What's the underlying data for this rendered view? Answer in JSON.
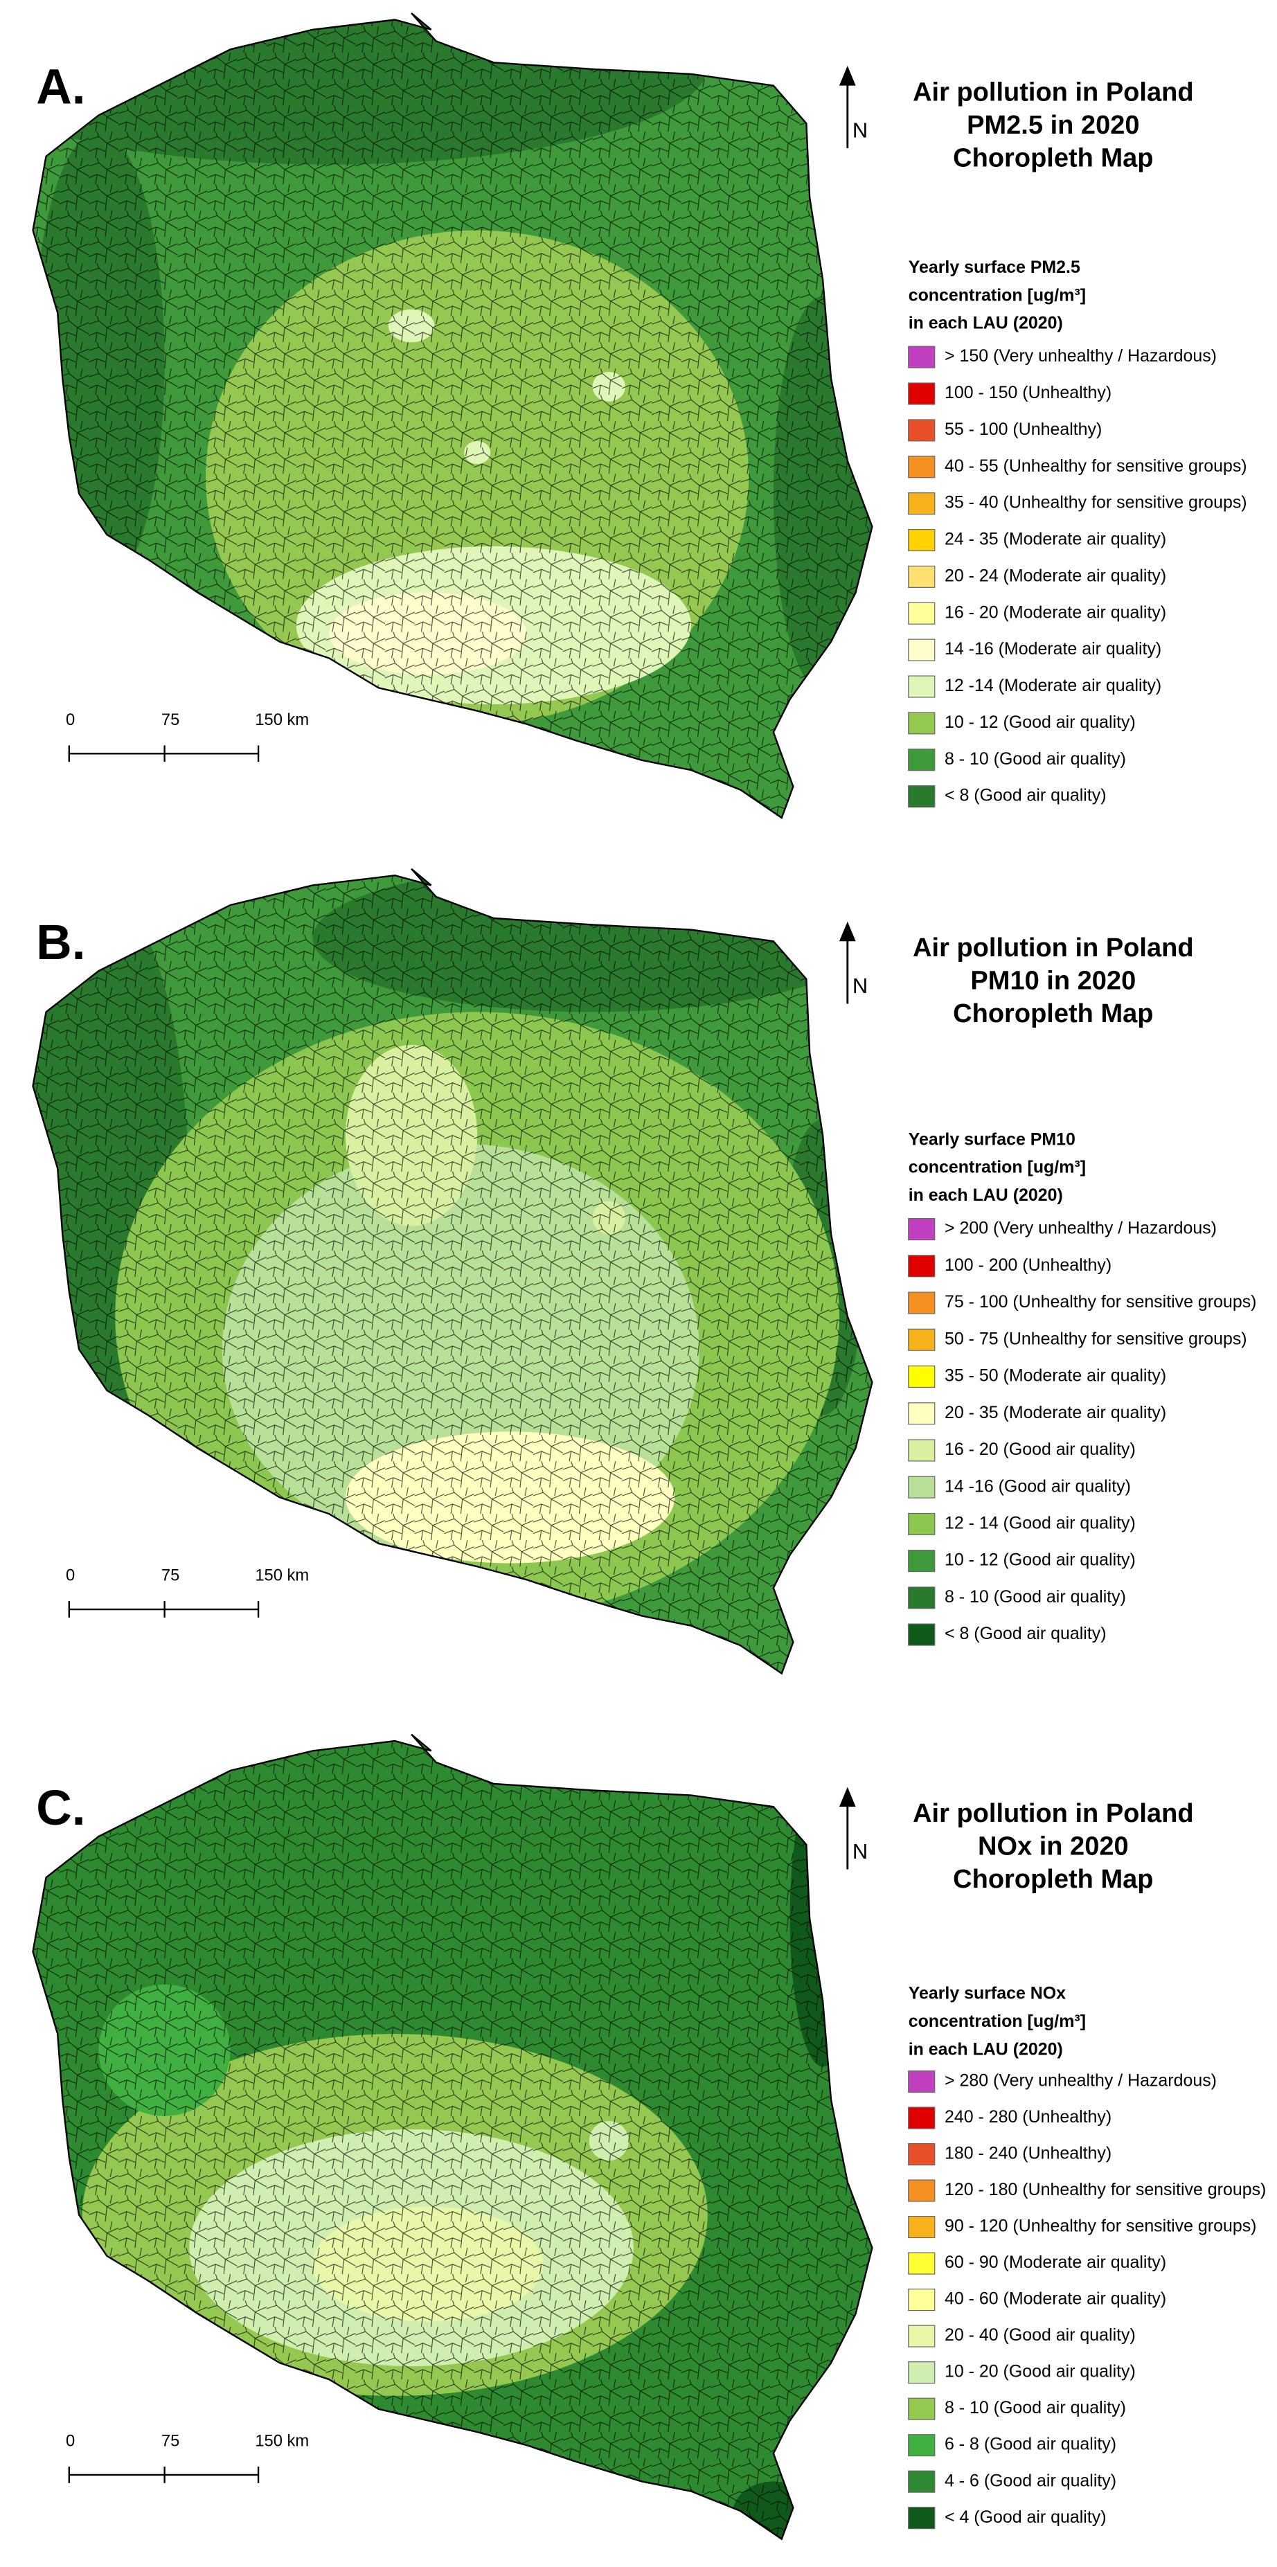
{
  "panels": [
    {
      "label": "A.",
      "title": [
        "Air pollution in Poland",
        "PM2.5 in 2020",
        "Choropleth Map"
      ],
      "north": "N",
      "scale_labels": [
        "0",
        "75",
        "150 km"
      ],
      "legend": {
        "title": [
          "Yearly surface PM2.5",
          "concentration [ug/m³]",
          "in each LAU (2020)"
        ],
        "items": [
          {
            "label": "> 150 (Very unhealthy / Hazardous)",
            "color": "#c040c0"
          },
          {
            "label": "100 - 150 (Unhealthy)",
            "color": "#e00000"
          },
          {
            "label": "55 - 100 (Unhealthy)",
            "color": "#e8502a"
          },
          {
            "label": "40 - 55 (Unhealthy for sensitive groups)",
            "color": "#f39020"
          },
          {
            "label": "35 - 40 (Unhealthy for sensitive groups)",
            "color": "#f7b21c"
          },
          {
            "label": "24 - 35 (Moderate air quality)",
            "color": "#ffd200"
          },
          {
            "label": "20 - 24 (Moderate air quality)",
            "color": "#ffe070"
          },
          {
            "label": "16 - 20 (Moderate air quality)",
            "color": "#ffff99"
          },
          {
            "label": "14 -16 (Moderate air quality)",
            "color": "#fffccc"
          },
          {
            "label": "12 -14 (Moderate air quality)",
            "color": "#e0f5b8"
          },
          {
            "label": "10 - 12 (Good air quality)",
            "color": "#95c850"
          },
          {
            "label": "8 - 10 (Good air quality)",
            "color": "#3e9a3a"
          },
          {
            "label": "< 8 (Good air quality)",
            "color": "#2a7a2e"
          }
        ]
      }
    },
    {
      "label": "B.",
      "title": [
        "Air pollution in Poland",
        "PM10 in 2020",
        "Choropleth Map"
      ],
      "north": "N",
      "scale_labels": [
        "0",
        "75",
        "150 km"
      ],
      "legend": {
        "title": [
          "Yearly surface PM10",
          "concentration [ug/m³]",
          "in each LAU (2020)"
        ],
        "items": [
          {
            "label": "> 200 (Very unhealthy / Hazardous)",
            "color": "#c040c0"
          },
          {
            "label": "100 - 200 (Unhealthy)",
            "color": "#e00000"
          },
          {
            "label": "75 - 100 (Unhealthy for sensitive groups)",
            "color": "#f39020"
          },
          {
            "label": "50 - 75 (Unhealthy for sensitive groups)",
            "color": "#f7b21c"
          },
          {
            "label": "35 - 50 (Moderate air quality)",
            "color": "#ffff00"
          },
          {
            "label": "20 - 35 (Moderate air quality)",
            "color": "#ffffc0"
          },
          {
            "label": "16 - 20 (Good air quality)",
            "color": "#d8f0a0"
          },
          {
            "label": "14 -16 (Good air quality)",
            "color": "#b8e098"
          },
          {
            "label": "12 - 14 (Good air quality)",
            "color": "#8cc850"
          },
          {
            "label": "10 - 12 (Good air quality)",
            "color": "#3e9a3a"
          },
          {
            "label": "8 - 10 (Good air quality)",
            "color": "#2a7a2e"
          },
          {
            "label": "< 8 (Good air quality)",
            "color": "#0f5a1a"
          }
        ]
      }
    },
    {
      "label": "C.",
      "title": [
        "Air pollution in Poland",
        "NOx in 2020",
        "Choropleth Map"
      ],
      "north": "N",
      "scale_labels": [
        "0",
        "75",
        "150 km"
      ],
      "legend": {
        "title": [
          "Yearly surface NOx",
          "concentration [ug/m³]",
          "in each LAU (2020)"
        ],
        "items": [
          {
            "label": "> 280 (Very unhealthy / Hazardous)",
            "color": "#c040c0"
          },
          {
            "label": "240 - 280 (Unhealthy)",
            "color": "#e00000"
          },
          {
            "label": "180 - 240 (Unhealthy)",
            "color": "#e8502a"
          },
          {
            "label": "120 - 180 (Unhealthy for sensitive groups)",
            "color": "#f39020"
          },
          {
            "label": "90 - 120 (Unhealthy for sensitive groups)",
            "color": "#f7b21c"
          },
          {
            "label": "60 - 90 (Moderate air quality)",
            "color": "#ffff33"
          },
          {
            "label": "40 - 60 (Moderate air quality)",
            "color": "#ffff99"
          },
          {
            "label": "20 - 40 (Good air quality)",
            "color": "#e8f7a8"
          },
          {
            "label": "10 - 20 (Good air quality)",
            "color": "#d0eeb0"
          },
          {
            "label": "8 - 10 (Good air quality)",
            "color": "#95c850"
          },
          {
            "label": "6 - 8 (Good air quality)",
            "color": "#40b040"
          },
          {
            "label": "4 - 6 (Good air quality)",
            "color": "#2e8a30"
          },
          {
            "label": "< 4 (Good air quality)",
            "color": "#0f5a1a"
          }
        ]
      }
    }
  ]
}
